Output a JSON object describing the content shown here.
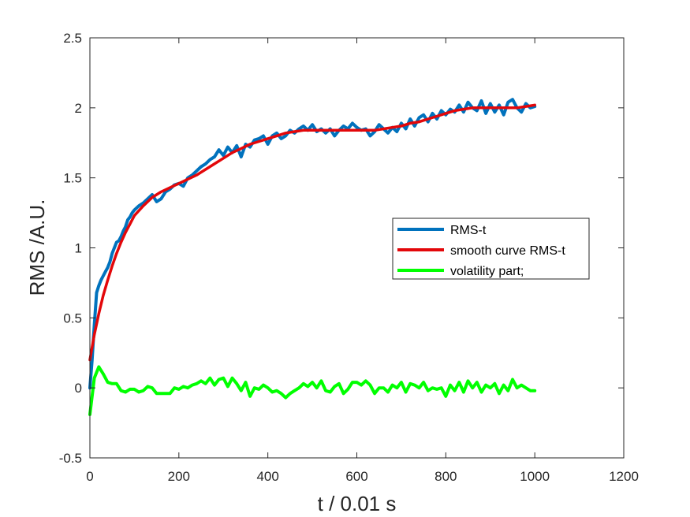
{
  "chart_data": {
    "type": "line",
    "title": "",
    "xlabel": "t / 0.01 s",
    "ylabel": "RMS /A.U.",
    "xlim": [
      0,
      1200
    ],
    "ylim": [
      -0.5,
      2.5
    ],
    "xticks": [
      0,
      200,
      400,
      600,
      800,
      1000,
      1200
    ],
    "yticks": [
      -0.5,
      0,
      0.5,
      1,
      1.5,
      2,
      2.5
    ],
    "xtick_labels": [
      "0",
      "200",
      "400",
      "600",
      "800",
      "1000",
      "1200"
    ],
    "ytick_labels": [
      "-0.5",
      "0",
      "0.5",
      "1",
      "1.5",
      "2",
      "2.5"
    ],
    "grid": false,
    "legend_position": "right",
    "series": [
      {
        "name": "RMS-t",
        "color": "#0072BD",
        "x": [
          0,
          5,
          10,
          15,
          20,
          25,
          30,
          35,
          40,
          45,
          50,
          55,
          60,
          65,
          70,
          75,
          80,
          85,
          90,
          95,
          100,
          110,
          120,
          130,
          140,
          150,
          160,
          170,
          180,
          190,
          200,
          210,
          220,
          230,
          240,
          250,
          260,
          270,
          280,
          290,
          300,
          310,
          320,
          330,
          340,
          350,
          360,
          370,
          380,
          390,
          400,
          410,
          420,
          430,
          440,
          450,
          460,
          470,
          480,
          490,
          500,
          510,
          520,
          530,
          540,
          550,
          560,
          570,
          580,
          590,
          600,
          610,
          620,
          630,
          640,
          650,
          660,
          670,
          680,
          690,
          700,
          710,
          720,
          730,
          740,
          750,
          760,
          770,
          780,
          790,
          800,
          810,
          820,
          830,
          840,
          850,
          860,
          870,
          880,
          890,
          900,
          910,
          920,
          930,
          940,
          950,
          960,
          970,
          980,
          990,
          1000
        ],
        "values": [
          0.0,
          0.2,
          0.45,
          0.68,
          0.73,
          0.77,
          0.8,
          0.83,
          0.86,
          0.9,
          0.96,
          1.0,
          1.04,
          1.05,
          1.08,
          1.12,
          1.15,
          1.2,
          1.22,
          1.25,
          1.27,
          1.3,
          1.32,
          1.35,
          1.38,
          1.33,
          1.35,
          1.4,
          1.42,
          1.45,
          1.46,
          1.44,
          1.5,
          1.52,
          1.55,
          1.58,
          1.6,
          1.63,
          1.65,
          1.7,
          1.66,
          1.72,
          1.68,
          1.73,
          1.65,
          1.74,
          1.72,
          1.77,
          1.78,
          1.8,
          1.74,
          1.8,
          1.82,
          1.78,
          1.8,
          1.84,
          1.82,
          1.85,
          1.87,
          1.84,
          1.88,
          1.83,
          1.85,
          1.82,
          1.85,
          1.8,
          1.84,
          1.87,
          1.85,
          1.89,
          1.86,
          1.84,
          1.85,
          1.8,
          1.83,
          1.88,
          1.85,
          1.82,
          1.86,
          1.83,
          1.89,
          1.85,
          1.92,
          1.87,
          1.93,
          1.95,
          1.9,
          1.96,
          1.92,
          1.98,
          1.95,
          1.99,
          1.97,
          2.02,
          1.97,
          2.04,
          2.0,
          1.98,
          2.05,
          1.96,
          2.03,
          1.97,
          2.02,
          1.95,
          2.04,
          2.06,
          2.0,
          1.97,
          2.03,
          2.0,
          2.01
        ]
      },
      {
        "name": "smooth curve RMS-t",
        "color": "#E3070A",
        "x": [
          0,
          10,
          20,
          30,
          40,
          50,
          60,
          70,
          80,
          90,
          100,
          120,
          140,
          160,
          180,
          200,
          220,
          240,
          260,
          280,
          300,
          320,
          340,
          360,
          380,
          400,
          420,
          440,
          460,
          480,
          500,
          520,
          540,
          560,
          580,
          600,
          620,
          640,
          660,
          680,
          700,
          720,
          740,
          760,
          780,
          800,
          820,
          840,
          860,
          880,
          900,
          920,
          940,
          960,
          980,
          1000
        ],
        "values": [
          0.2,
          0.38,
          0.53,
          0.66,
          0.77,
          0.87,
          0.96,
          1.04,
          1.11,
          1.17,
          1.23,
          1.3,
          1.36,
          1.4,
          1.43,
          1.46,
          1.49,
          1.52,
          1.56,
          1.6,
          1.64,
          1.68,
          1.71,
          1.74,
          1.76,
          1.78,
          1.8,
          1.82,
          1.83,
          1.84,
          1.84,
          1.84,
          1.84,
          1.84,
          1.84,
          1.84,
          1.84,
          1.84,
          1.85,
          1.86,
          1.87,
          1.89,
          1.9,
          1.92,
          1.94,
          1.96,
          1.98,
          1.99,
          2.0,
          2.0,
          2.0,
          2.0,
          2.0,
          2.0,
          2.01,
          2.02
        ]
      },
      {
        "name": "volatility part;",
        "color": "#00FF00",
        "x": [
          0,
          10,
          20,
          30,
          40,
          50,
          60,
          70,
          80,
          90,
          100,
          110,
          120,
          130,
          140,
          150,
          160,
          170,
          180,
          190,
          200,
          210,
          220,
          230,
          240,
          250,
          260,
          270,
          280,
          290,
          300,
          310,
          320,
          330,
          340,
          350,
          360,
          370,
          380,
          390,
          400,
          410,
          420,
          430,
          440,
          450,
          460,
          470,
          480,
          490,
          500,
          510,
          520,
          530,
          540,
          550,
          560,
          570,
          580,
          590,
          600,
          610,
          620,
          630,
          640,
          650,
          660,
          670,
          680,
          690,
          700,
          710,
          720,
          730,
          740,
          750,
          760,
          770,
          780,
          790,
          800,
          810,
          820,
          830,
          840,
          850,
          860,
          870,
          880,
          890,
          900,
          910,
          920,
          930,
          940,
          950,
          960,
          970,
          980,
          990,
          1000
        ],
        "values": [
          -0.19,
          0.07,
          0.15,
          0.1,
          0.04,
          0.03,
          0.03,
          -0.02,
          -0.03,
          -0.01,
          -0.01,
          -0.03,
          -0.02,
          0.01,
          0.0,
          -0.04,
          -0.04,
          -0.04,
          -0.04,
          0.0,
          -0.01,
          0.01,
          0.0,
          0.02,
          0.03,
          0.05,
          0.03,
          0.07,
          0.02,
          0.06,
          0.07,
          0.01,
          0.07,
          0.03,
          -0.02,
          0.04,
          -0.06,
          0.0,
          -0.01,
          0.02,
          0.0,
          -0.03,
          -0.02,
          -0.04,
          -0.07,
          -0.04,
          -0.02,
          0.0,
          0.03,
          0.01,
          0.04,
          0.0,
          0.05,
          -0.02,
          -0.03,
          0.01,
          0.03,
          -0.04,
          -0.01,
          0.04,
          0.04,
          0.02,
          0.05,
          0.02,
          -0.04,
          0.0,
          0.0,
          -0.03,
          0.02,
          0.0,
          0.04,
          -0.03,
          0.03,
          0.02,
          0.0,
          0.04,
          -0.02,
          0.0,
          -0.01,
          0.0,
          -0.06,
          0.02,
          -0.02,
          0.04,
          -0.03,
          0.05,
          0.0,
          0.04,
          -0.03,
          0.02,
          0.0,
          0.03,
          -0.04,
          0.02,
          -0.02,
          0.06,
          0.0,
          0.02,
          0.0,
          -0.02,
          -0.02
        ]
      }
    ]
  }
}
